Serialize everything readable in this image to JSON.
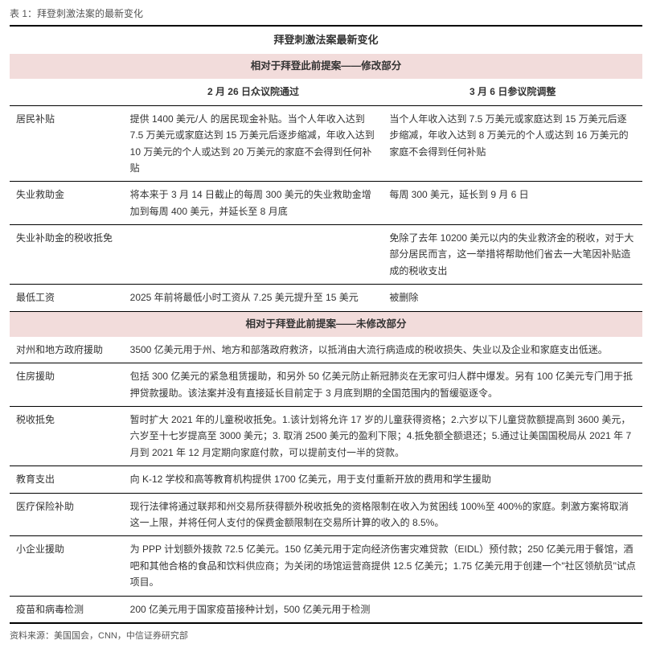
{
  "caption": "表 1：拜登刺激法案的最新变化",
  "table_title": "拜登刺激法案最新变化",
  "section1_header": "相对于拜登此前提案——修改部分",
  "col_headers": {
    "c1": "2 月 26 日众议院通过",
    "c2": "3 月 6 日参议院调整"
  },
  "section1_rows": [
    {
      "label": "居民补贴",
      "c1": "提供 1400 美元/人 的居民现金补贴。当个人年收入达到 7.5 万美元或家庭达到 15 万美元后逐步缩减，年收入达到 10 万美元的个人或达到 20 万美元的家庭不会得到任何补贴",
      "c2": "当个人年收入达到 7.5 万美元或家庭达到 15 万美元后逐步缩减，年收入达到 8 万美元的个人或达到 16 万美元的家庭不会得到任何补贴"
    },
    {
      "label": "失业救助金",
      "c1": "将本来于 3 月 14 日截止的每周 300 美元的失业救助金增加到每周 400 美元，并延长至 8 月底",
      "c2": "每周 300 美元，延长到 9 月 6 日"
    },
    {
      "label": "失业补助金的税收抵免",
      "c1": "",
      "c2": "免除了去年 10200 美元以内的失业救济金的税收，对于大部分居民而言，这一举措将帮助他们省去一大笔因补贴造成的税收支出"
    },
    {
      "label": "最低工资",
      "c1": "2025 年前将最低小时工资从 7.25 美元提升至 15 美元",
      "c2": "被删除"
    }
  ],
  "section2_header": "相对于拜登此前提案——未修改部分",
  "section2_rows": [
    {
      "label": "对州和地方政府援助",
      "val": "3500 亿美元用于州、地方和部落政府救济，以抵消由大流行病造成的税收损失、失业以及企业和家庭支出低迷。"
    },
    {
      "label": "住房援助",
      "val": "包括 300 亿美元的紧急租赁援助，和另外 50 亿美元防止新冠肺炎在无家可归人群中爆发。另有 100 亿美元专门用于抵押贷款援助。该法案并没有直接延长目前定于 3 月底到期的全国范围内的暂缓驱逐令。"
    },
    {
      "label": "税收抵免",
      "val": "暂时扩大 2021 年的儿童税收抵免。1.该计划将允许 17 岁的儿童获得资格；2.六岁以下儿童贷款额提高到 3600 美元，六岁至十七岁提高至 3000 美元；3. 取消 2500 美元的盈利下限；4.抵免额全额退还；5.通过让美国国税局从 2021 年 7 月到 2021 年 12 月定期向家庭付款，可以提前支付一半的贷款。"
    },
    {
      "label": "教育支出",
      "val": "向 K-12 学校和高等教育机构提供 1700 亿美元，用于支付重新开放的费用和学生援助"
    },
    {
      "label": "医疗保险补助",
      "val": "现行法律将通过联邦和州交易所获得额外税收抵免的资格限制在收入为贫困线 100%至 400%的家庭。刺激方案将取消这一上限，并将任何人支付的保费金额限制在交易所计算的收入的 8.5%。"
    },
    {
      "label": "小企业援助",
      "val": "为 PPP 计划额外拨款 72.5 亿美元。150 亿美元用于定向经济伤害灾难贷款（EIDL）预付款；250 亿美元用于餐馆，酒吧和其他合格的食品和饮料供应商；为关闭的场馆运营商提供 12.5 亿美元；1.75 亿美元用于创建一个\"社区领航员\"试点项目。"
    },
    {
      "label": "疫苗和病毒检测",
      "val": "200 亿美元用于国家疫苗接种计划，500 亿美元用于检测"
    }
  ],
  "source": "资料来源：美国国会，CNN，中信证券研究部",
  "colors": {
    "section_bg": "#f2dcdb",
    "border": "#000000"
  }
}
